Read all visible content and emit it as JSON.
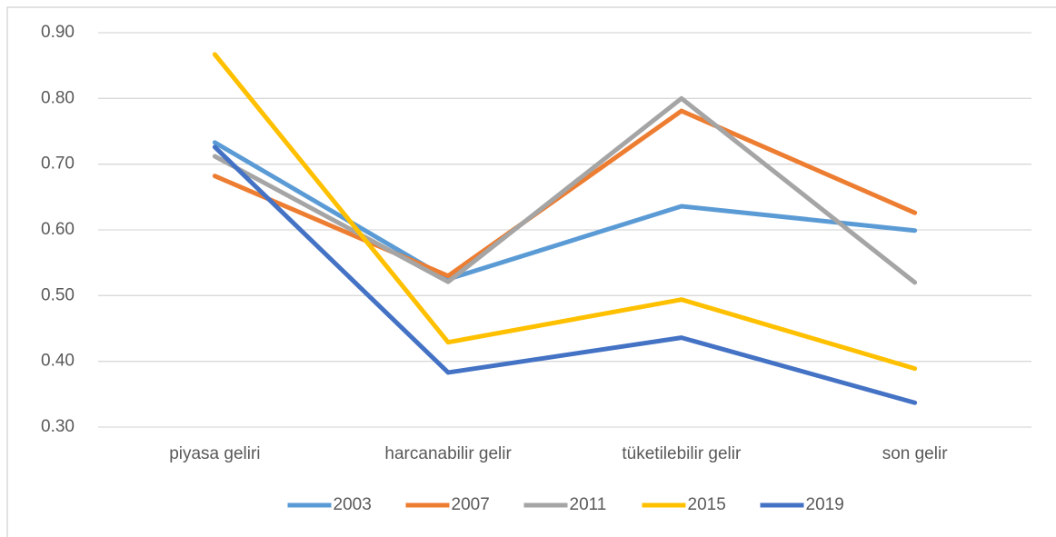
{
  "chart_data": {
    "type": "line",
    "categories": [
      "piyasa geliri",
      "harcanabilir gelir",
      "tüketilebilir gelir",
      "son gelir"
    ],
    "series": [
      {
        "name": "2003",
        "color": "#5b9bd5",
        "values": [
          0.733,
          0.525,
          0.636,
          0.599
        ]
      },
      {
        "name": "2007",
        "color": "#ed7d31",
        "values": [
          0.682,
          0.53,
          0.781,
          0.626
        ]
      },
      {
        "name": "2011",
        "color": "#a5a5a5",
        "values": [
          0.712,
          0.521,
          0.8,
          0.52
        ]
      },
      {
        "name": "2015",
        "color": "#ffc000",
        "values": [
          0.867,
          0.429,
          0.494,
          0.389
        ]
      },
      {
        "name": "2019",
        "color": "#4472c4",
        "values": [
          0.726,
          0.383,
          0.436,
          0.337
        ]
      }
    ],
    "ylim": [
      0.3,
      0.9
    ],
    "yticks": [
      {
        "value": 0.3,
        "label": "0.30"
      },
      {
        "value": 0.4,
        "label": "0.40"
      },
      {
        "value": 0.5,
        "label": "0.50"
      },
      {
        "value": 0.6,
        "label": "0.60"
      },
      {
        "value": 0.7,
        "label": "0.70"
      },
      {
        "value": 0.8,
        "label": "0.80"
      },
      {
        "value": 0.9,
        "label": "0.90"
      }
    ],
    "grid": true,
    "legend": "bottom"
  }
}
